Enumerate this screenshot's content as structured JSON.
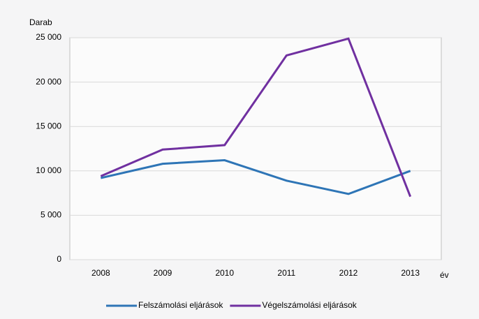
{
  "chart_data": {
    "type": "line",
    "y_label": "Darab",
    "x_label": "év",
    "categories": [
      "2008",
      "2009",
      "2010",
      "2011",
      "2012",
      "2013"
    ],
    "series": [
      {
        "name": "Felszámolási eljárások",
        "color": "#2e75b6",
        "values": [
          9200,
          10800,
          11200,
          8900,
          7400,
          10000
        ]
      },
      {
        "name": "Végelszámolási eljárások",
        "color": "#7030a0",
        "values": [
          9400,
          12400,
          12900,
          23000,
          24900,
          7100
        ]
      }
    ],
    "ylim": [
      0,
      25000
    ],
    "yticks": [
      0,
      {
        "value": 5000,
        "label": "5 000"
      },
      {
        "value": 10000,
        "label": "10 000"
      },
      {
        "value": 15000,
        "label": "15 000"
      },
      {
        "value": 20000,
        "label": "20 000"
      },
      {
        "value": 25000,
        "label": "25 000"
      }
    ],
    "grid": true
  }
}
